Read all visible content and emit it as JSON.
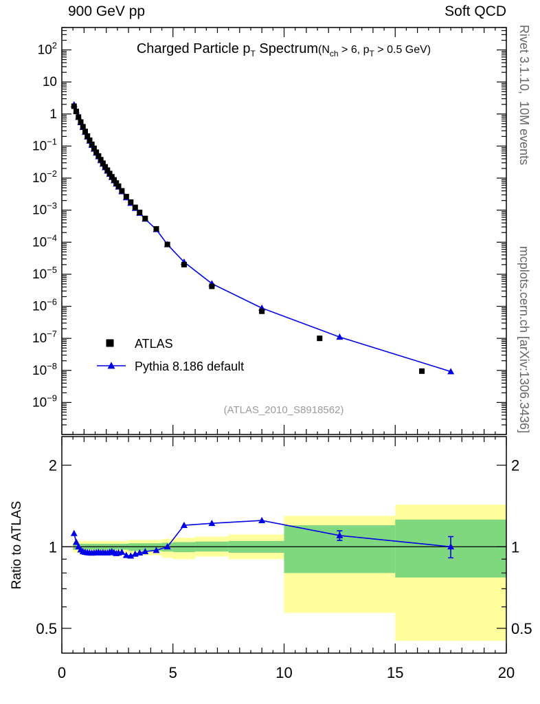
{
  "header": {
    "left": "900 GeV pp",
    "right": "Soft QCD"
  },
  "side": {
    "rivet": "Rivet 3.1.10,  10M events",
    "mcplots": "mcplots.cern.ch [arXiv:1306.3436]"
  },
  "title": {
    "part1": "Charged Particle p",
    "sub1": "T",
    "part2": " Spectrum",
    "part3": "(N",
    "sub2": "ch",
    "part4": " > 6, p",
    "sub3": "T",
    "part5": " > 0.5 GeV)"
  },
  "legend": {
    "entries": [
      {
        "label": "ATLAS",
        "marker": "black-square"
      },
      {
        "label": "Pythia 8.186 default",
        "marker": "blue-triangle-line"
      }
    ]
  },
  "watermark": "(ATLAS_2010_S8918562)",
  "ratio_axis_title": "Ratio to ATLAS",
  "colors": {
    "mc_blue": "#0000e6",
    "data_black": "#000000",
    "band_outer_yellow": "#ffff9e",
    "band_inner_green": "#7fd87f",
    "watermark_gray": "#9c9c9c",
    "side_text_gray": "#666666"
  },
  "chart_data": [
    {
      "type": "line",
      "panel": "main",
      "title": "Charged Particle pT Spectrum (Nch > 6, pT > 0.5 GeV)",
      "xlabel": "",
      "ylabel": "",
      "yscale": "log",
      "xlim": [
        0,
        20
      ],
      "ylim": [
        1e-10,
        500
      ],
      "x_major_ticks": [
        0,
        5,
        10,
        15,
        20
      ],
      "y_tick_exponents": [
        2,
        1,
        0,
        -1,
        -2,
        -3,
        -4,
        -5,
        -6,
        -7,
        -8,
        -9
      ],
      "legend_position": "middle-left",
      "grid": false,
      "series": [
        {
          "name": "ATLAS",
          "marker": "square",
          "color": "#000000",
          "line": false,
          "x": [
            0.55,
            0.65,
            0.75,
            0.85,
            0.95,
            1.05,
            1.15,
            1.25,
            1.35,
            1.45,
            1.55,
            1.65,
            1.75,
            1.85,
            1.95,
            2.05,
            2.15,
            2.25,
            2.35,
            2.45,
            2.55,
            2.7,
            2.9,
            3.1,
            3.3,
            3.5,
            3.75,
            4.25,
            4.75,
            5.5,
            6.75,
            9.0,
            11.6,
            16.2
          ],
          "y": [
            1.75,
            1.2,
            0.8,
            0.56,
            0.4,
            0.285,
            0.205,
            0.152,
            0.113,
            0.085,
            0.064,
            0.049,
            0.0375,
            0.029,
            0.0225,
            0.0177,
            0.0139,
            0.011,
            0.0088,
            0.007,
            0.0056,
            0.004,
            0.00265,
            0.00178,
            0.00122,
            0.00085,
            0.00055,
            0.00026,
            8.5e-05,
            2e-05,
            4.2e-06,
            7e-07,
            1e-07,
            9.5e-09
          ]
        },
        {
          "name": "Pythia 8.186 default",
          "marker": "triangle-up",
          "color": "#0000e6",
          "line": true,
          "x": [
            0.55,
            0.65,
            0.75,
            0.85,
            0.95,
            1.05,
            1.15,
            1.25,
            1.35,
            1.45,
            1.55,
            1.65,
            1.75,
            1.85,
            1.95,
            2.05,
            2.15,
            2.25,
            2.35,
            2.45,
            2.55,
            2.7,
            2.9,
            3.1,
            3.3,
            3.5,
            3.75,
            4.25,
            4.75,
            5.5,
            6.75,
            9.0,
            12.5,
            17.5
          ],
          "y": [
            1.96,
            1.25,
            0.8,
            0.545,
            0.385,
            0.272,
            0.195,
            0.145,
            0.107,
            0.081,
            0.061,
            0.047,
            0.0356,
            0.0276,
            0.0214,
            0.0168,
            0.0133,
            0.0106,
            0.0084,
            0.0066,
            0.0053,
            0.0038,
            0.00247,
            0.00165,
            0.00115,
            0.00081,
            0.00053,
            0.00025,
            8.5e-05,
            2.4e-05,
            5.1e-06,
            8.8e-07,
            1.1e-07,
            9.2e-09
          ]
        }
      ]
    },
    {
      "type": "ratio",
      "panel": "ratio",
      "ylabel": "Ratio to ATLAS",
      "yscale": "log",
      "xlim": [
        0,
        20
      ],
      "ylim": [
        0.405,
        2.55
      ],
      "x_major_ticks": [
        0,
        5,
        10,
        15,
        20
      ],
      "y_major_ticks": [
        0.5,
        1,
        2
      ],
      "y_minor_ticks": [
        0.6,
        0.7,
        0.8,
        0.9
      ],
      "reference_line": 1.0,
      "bands": {
        "outer_color": "#ffff9e",
        "inner_color": "#7fd87f",
        "outer": [
          [
            0.5,
            3.0,
            0.95,
            1.05
          ],
          [
            3.0,
            4.5,
            0.93,
            1.06
          ],
          [
            4.5,
            5.0,
            0.91,
            1.07
          ],
          [
            5.0,
            6.0,
            0.9,
            1.08
          ],
          [
            6.0,
            7.5,
            0.92,
            1.09
          ],
          [
            7.5,
            10.0,
            0.9,
            1.11
          ],
          [
            10.0,
            15.0,
            0.57,
            1.3
          ],
          [
            15.0,
            20.0,
            0.45,
            1.43
          ]
        ],
        "inner": [
          [
            0.5,
            3.0,
            0.975,
            1.025
          ],
          [
            3.0,
            4.5,
            0.965,
            1.03
          ],
          [
            4.5,
            5.0,
            0.96,
            1.035
          ],
          [
            5.0,
            6.0,
            0.955,
            1.04
          ],
          [
            6.0,
            7.5,
            0.96,
            1.045
          ],
          [
            7.5,
            10.0,
            0.95,
            1.05
          ],
          [
            10.0,
            15.0,
            0.8,
            1.2
          ],
          [
            15.0,
            20.0,
            0.77,
            1.26
          ]
        ]
      },
      "series": [
        {
          "name": "Pythia 8.186 default / ATLAS",
          "marker": "triangle-up",
          "color": "#0000e6",
          "line": true,
          "x": [
            0.55,
            0.65,
            0.75,
            0.85,
            0.95,
            1.05,
            1.15,
            1.25,
            1.35,
            1.45,
            1.55,
            1.65,
            1.75,
            1.85,
            1.95,
            2.05,
            2.15,
            2.25,
            2.35,
            2.45,
            2.55,
            2.7,
            2.9,
            3.1,
            3.3,
            3.5,
            3.75,
            4.25,
            4.75,
            5.5,
            6.75,
            9.0,
            12.5,
            17.5
          ],
          "y": [
            1.12,
            1.04,
            1.0,
            0.975,
            0.96,
            0.955,
            0.952,
            0.95,
            0.948,
            0.95,
            0.952,
            0.955,
            0.95,
            0.952,
            0.95,
            0.95,
            0.955,
            0.96,
            0.952,
            0.945,
            0.95,
            0.955,
            0.93,
            0.925,
            0.94,
            0.95,
            0.96,
            0.97,
            1.0,
            1.2,
            1.22,
            1.25,
            1.1,
            1.0
          ],
          "yerr": [
            0,
            0,
            0,
            0,
            0,
            0,
            0,
            0,
            0,
            0,
            0,
            0,
            0,
            0,
            0,
            0,
            0,
            0,
            0,
            0,
            0,
            0,
            0,
            0,
            0,
            0,
            0,
            0,
            0,
            0,
            0,
            0,
            0.045,
            0.09
          ]
        }
      ]
    }
  ]
}
